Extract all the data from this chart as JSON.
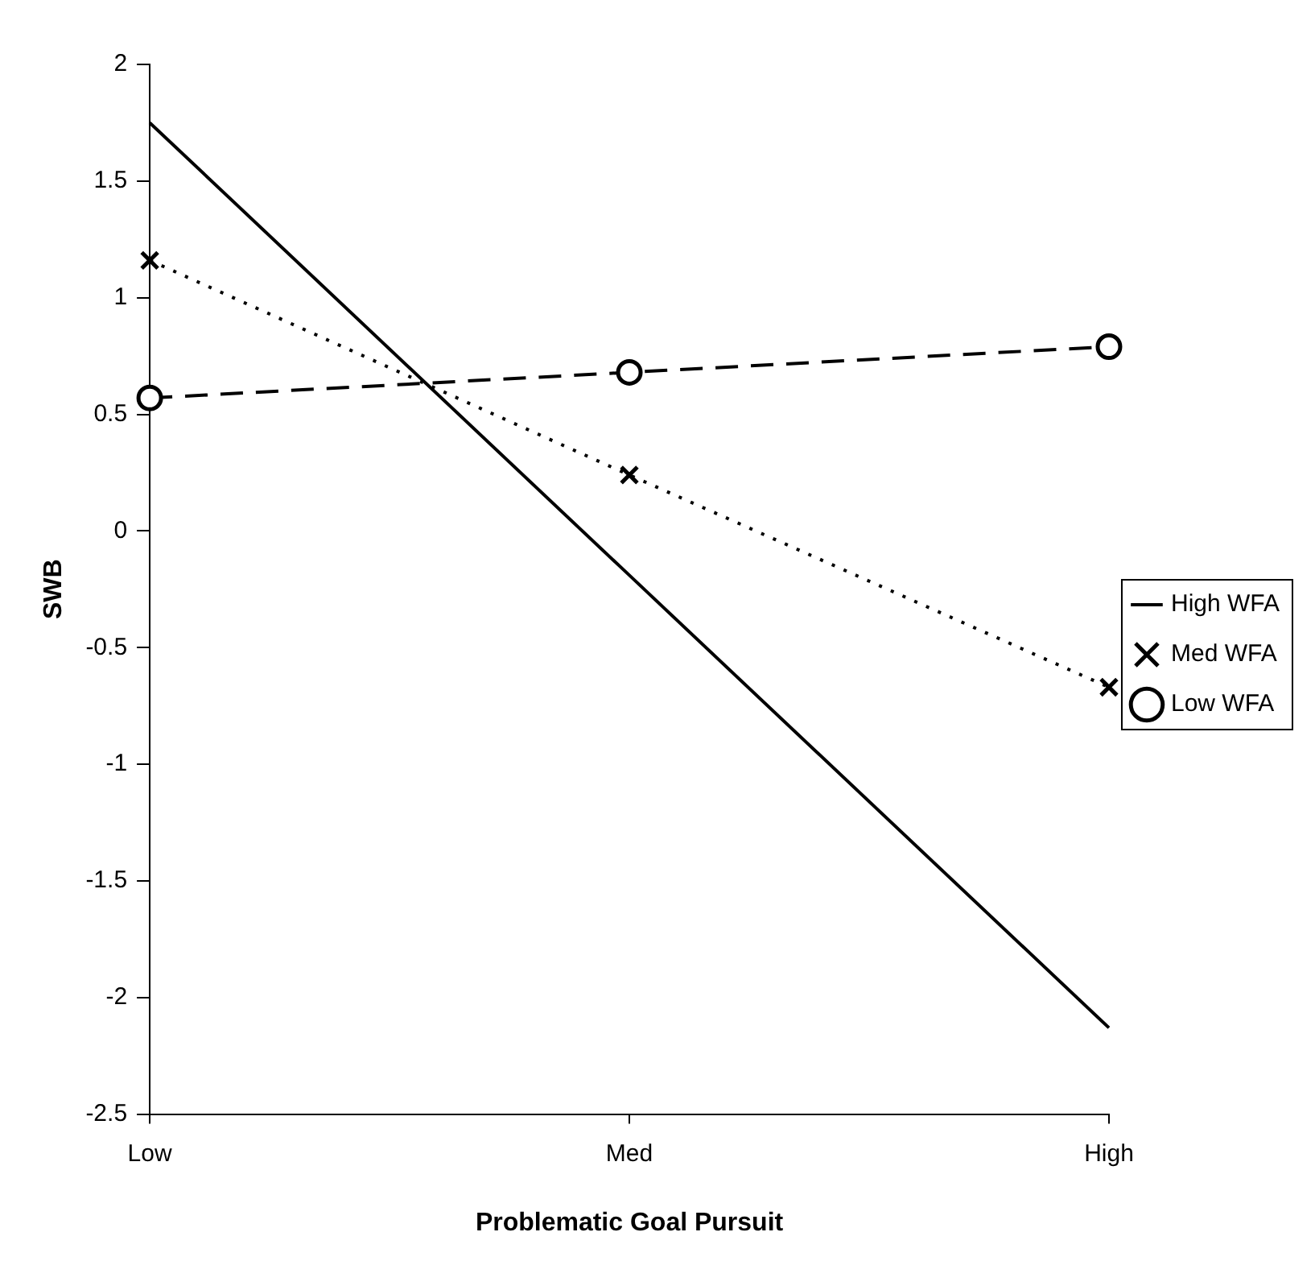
{
  "chart_data": {
    "type": "line",
    "xlabel": "Problematic Goal Pursuit",
    "ylabel": "SWB",
    "categories": [
      "Low",
      "Med",
      "High"
    ],
    "ylim": [
      -2.5,
      2
    ],
    "yticks": [
      -2.5,
      -2,
      -1.5,
      -1,
      -0.5,
      0,
      0.5,
      1,
      1.5,
      2
    ],
    "grid": false,
    "legend": "right",
    "series": [
      {
        "name": "High WFA",
        "color": "#000000",
        "values": [
          1.75,
          -0.19,
          -2.13
        ],
        "line_style": "solid",
        "marker": "none"
      },
      {
        "name": "Med WFA",
        "color": "#000000",
        "values": [
          1.16,
          0.24,
          -0.67
        ],
        "line_style": "dotted",
        "marker": "cross"
      },
      {
        "name": "Low WFA",
        "color": "#000000",
        "values": [
          0.57,
          0.68,
          0.79
        ],
        "line_style": "dashed",
        "marker": "circle"
      }
    ]
  }
}
